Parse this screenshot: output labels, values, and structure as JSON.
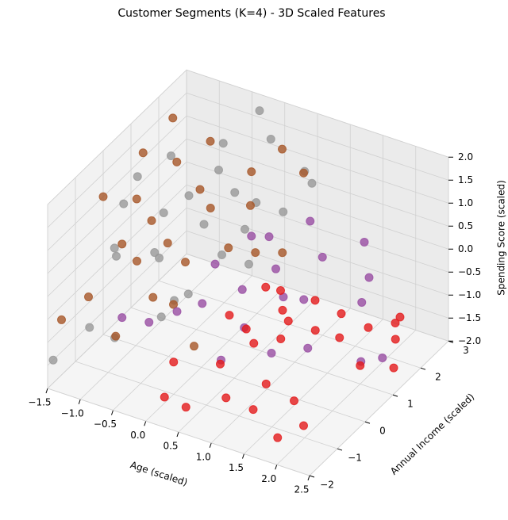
{
  "chart_data": {
    "type": "scatter3d",
    "title": "Customer Segments (K=4) - 3D Scaled Features",
    "x_label": "Age (scaled)",
    "y_label": "Annual Income (scaled)",
    "z_label": "Spending Score (scaled)",
    "xlim": [
      -1.5,
      2.5
    ],
    "ylim": [
      -2,
      3
    ],
    "zlim": [
      -2,
      2
    ],
    "xticks": [
      {
        "value": -1.5,
        "label": "−1.5"
      },
      {
        "value": -1,
        "label": "−1.0"
      },
      {
        "value": -0.5,
        "label": "−0.5"
      },
      {
        "value": 0,
        "label": "0.0"
      },
      0.5,
      {
        "value": 1,
        "label": "1.0"
      },
      1.5,
      {
        "value": 2,
        "label": "2.0"
      },
      2.5
    ],
    "yticks": [
      {
        "value": -2,
        "label": "−2"
      },
      {
        "value": -1,
        "label": "−1"
      },
      0,
      1,
      2,
      3
    ],
    "zticks": [
      {
        "value": -2,
        "label": "−2.0"
      },
      {
        "value": -1.5,
        "label": "−1.5"
      },
      {
        "value": -1,
        "label": "−1.0"
      },
      {
        "value": -0.5,
        "label": "−0.5"
      },
      {
        "value": 0,
        "label": "0.0"
      },
      0.5,
      {
        "value": 1,
        "label": "1.0"
      },
      1.5,
      {
        "value": 2,
        "label": "2.0"
      }
    ],
    "grid": true,
    "series": [
      {
        "color": "#999999",
        "x": [
          -1.4,
          -1.0,
          -0.5,
          0.0,
          -1.2,
          -0.8,
          -0.3,
          0.2,
          -1.5,
          -0.9,
          -0.2,
          0.3,
          -1.1,
          -0.6,
          0.5,
          -1.3,
          -0.4,
          0.1,
          -0.7,
          0.4,
          -1.2,
          -0.1,
          0.6,
          -0.9,
          -1.4,
          -0.5,
          0.0,
          -0.3
        ],
        "y": [
          0.5,
          1.0,
          1.8,
          2.5,
          -0.3,
          0.2,
          0.8,
          1.5,
          -1.8,
          -1.0,
          0.0,
          1.0,
          1.5,
          2.2,
          2.8,
          0.0,
          -0.5,
          0.5,
          1.2,
          2.0,
          -1.2,
          1.8,
          2.3,
          0.6,
          1.0,
          0.2,
          1.2,
          2.8
        ],
        "z": [
          0.6,
          0.3,
          1.0,
          1.5,
          0.2,
          0.0,
          0.5,
          0.8,
          -1.5,
          -1.2,
          -0.5,
          -0.2,
          1.2,
          1.3,
          0.6,
          -0.2,
          -0.8,
          0.2,
          0.7,
          0.4,
          -1.0,
          -0.1,
          1.2,
          -0.4,
          0.9,
          -0.9,
          1.1,
          1.8
        ]
      },
      {
        "color": "#a65628",
        "x": [
          -1.5,
          -1.2,
          -1.0,
          -0.8,
          -0.5,
          -1.3,
          -0.6,
          -0.2,
          0.0,
          0.3,
          -1.4,
          -0.9,
          -0.4,
          0.2,
          -1.1,
          -0.7,
          0.5,
          -0.3,
          0.4,
          -1.5,
          -0.1,
          -0.8,
          0.1,
          -1.2,
          0.6,
          -0.5
        ],
        "y": [
          0.0,
          0.5,
          -0.5,
          1.0,
          1.5,
          -1.0,
          0.2,
          0.8,
          1.8,
          2.2,
          1.2,
          -0.2,
          -0.8,
          0.5,
          0.8,
          1.6,
          2.5,
          -0.3,
          1.0,
          -1.5,
          2.0,
          -1.2,
          -0.5,
          1.8,
          1.5,
          0.6
        ],
        "z": [
          1.0,
          0.8,
          0.5,
          1.5,
          1.8,
          -0.5,
          0.3,
          0.9,
          1.2,
          1.6,
          1.3,
          0.0,
          -0.2,
          0.4,
          0.2,
          0.6,
          1.0,
          -0.6,
          0.1,
          -0.8,
          0.3,
          -1.0,
          -1.2,
          1.8,
          -0.1,
          -0.3
        ]
      },
      {
        "color": "#984ea3",
        "x": [
          0.5,
          1.0,
          0.2,
          -0.2,
          1.5,
          0.8,
          -0.5,
          0.0,
          1.2,
          0.3,
          1.8,
          -0.8,
          0.6,
          1.3,
          0.9,
          -0.3,
          0.1,
          1.6,
          -1.0,
          0.4,
          2.0,
          0.7
        ],
        "y": [
          1.5,
          2.0,
          1.0,
          0.5,
          2.5,
          1.8,
          0.3,
          1.8,
          1.0,
          0.0,
          1.5,
          0.0,
          2.5,
          2.8,
          0.4,
          1.2,
          2.2,
          2.0,
          -0.5,
          0.6,
          1.8,
          1.3
        ],
        "z": [
          -0.5,
          -0.3,
          -0.8,
          -1.0,
          -0.8,
          -1.2,
          -1.2,
          -0.2,
          -1.6,
          -1.7,
          -1.9,
          -1.4,
          0.0,
          -0.3,
          -1.5,
          -0.6,
          -0.4,
          -1.0,
          -1.1,
          -1.3,
          -1.9,
          -0.9
        ]
      },
      {
        "color": "#e41a1c",
        "x": [
          0.2,
          1.8,
          1.5,
          0.8,
          1.2,
          1.9,
          1.0,
          1.4,
          1.6,
          2.0,
          2.2,
          2.1,
          1.7,
          0.6,
          0.9,
          0.3,
          0.5,
          1.3,
          0.0,
          2.3,
          1.1,
          0.7,
          1.5,
          0.4,
          1.9,
          0.8,
          1.2,
          0.6
        ],
        "y": [
          -1.8,
          -1.5,
          1.5,
          -1.0,
          -0.5,
          -0.8,
          0.5,
          0.8,
          1.2,
          1.0,
          1.8,
          2.2,
          2.0,
          0.2,
          0.8,
          0.3,
          -0.5,
          -1.2,
          -1.0,
          1.5,
          1.5,
          1.2,
          -0.2,
          -1.5,
          2.5,
          0.0,
          0.3,
          0.9
        ],
        "z": [
          -1.5,
          -1.8,
          -1.0,
          -1.7,
          -1.5,
          -1.9,
          -1.2,
          -1.0,
          -1.3,
          -1.6,
          -1.4,
          -1.2,
          -1.5,
          -1.0,
          -0.8,
          -0.9,
          -1.4,
          -1.6,
          -1.3,
          -1.8,
          -0.9,
          -0.7,
          -1.9,
          -1.8,
          -1.6,
          -1.1,
          -0.6,
          -0.5
        ]
      }
    ]
  }
}
